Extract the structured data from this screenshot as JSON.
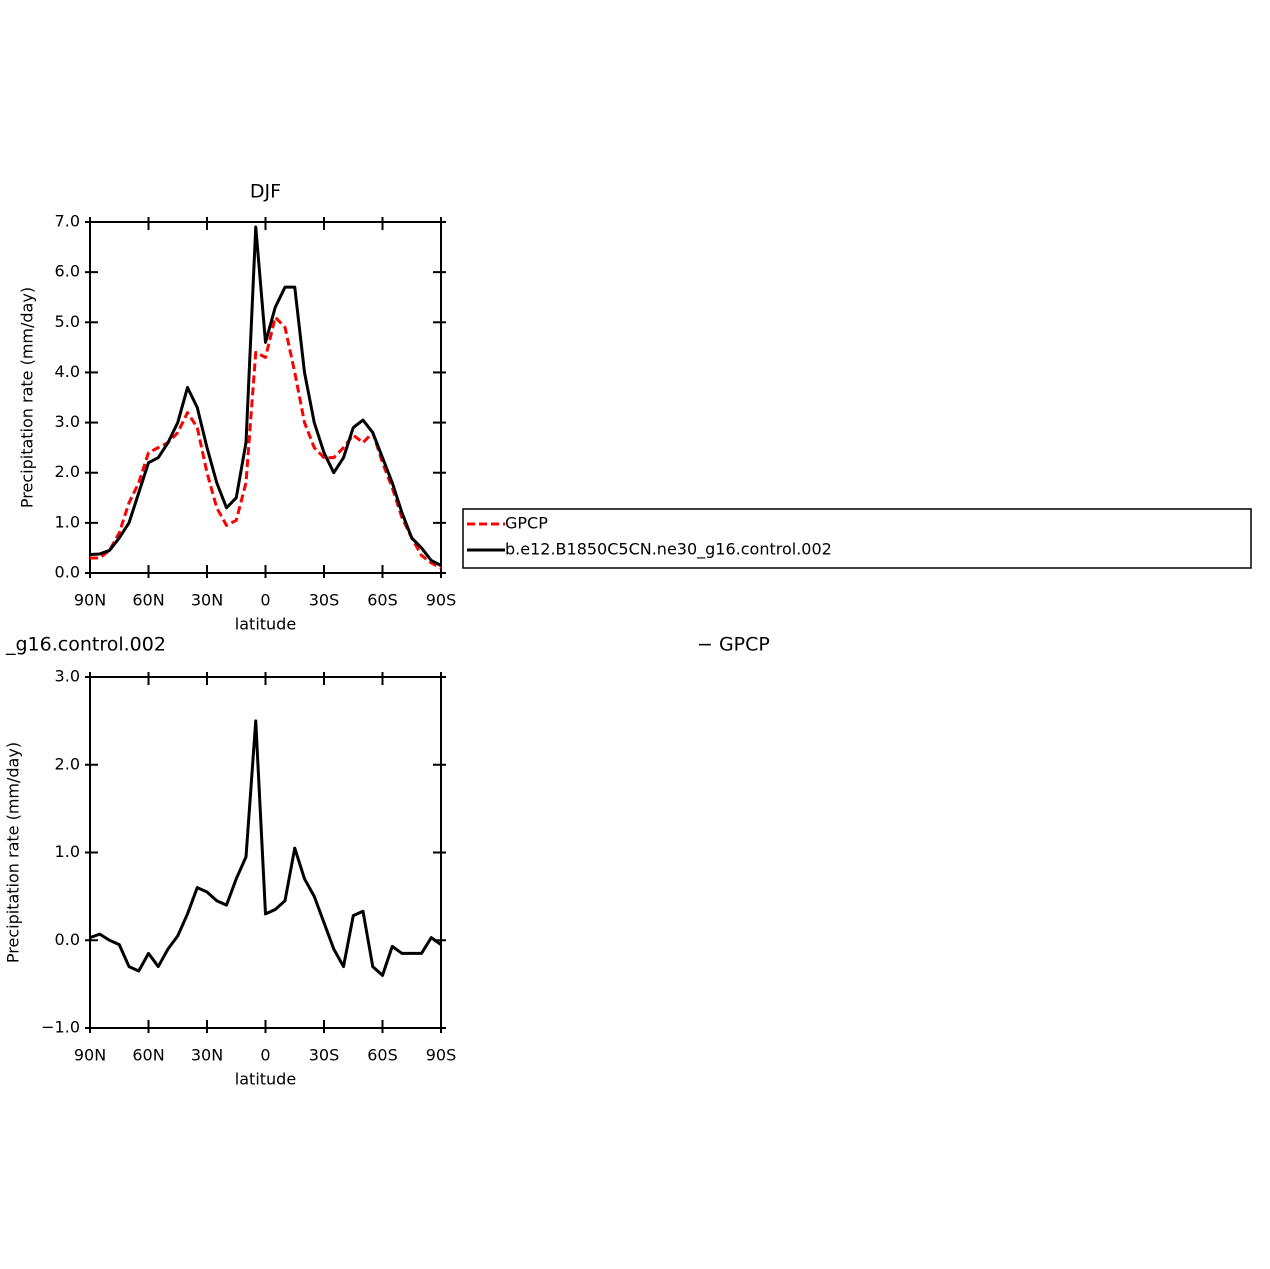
{
  "chart_data": [
    {
      "type": "line",
      "title": "DJF",
      "xlabel": "latitude",
      "ylabel": "Precipitation rate (mm/day)",
      "x": [
        90,
        85,
        80,
        75,
        70,
        65,
        60,
        55,
        50,
        45,
        40,
        35,
        30,
        25,
        20,
        15,
        10,
        5,
        0,
        -5,
        -10,
        -15,
        -20,
        -25,
        -30,
        -35,
        -40,
        -45,
        -50,
        -55,
        -60,
        -65,
        -70,
        -75,
        -80,
        -85,
        -90
      ],
      "series": [
        {
          "name": "GPCP",
          "color": "#ff0000",
          "dash": true,
          "values": [
            0.3,
            0.3,
            0.45,
            0.8,
            1.4,
            1.8,
            2.4,
            2.5,
            2.6,
            2.8,
            3.2,
            2.9,
            2.0,
            1.3,
            0.95,
            1.05,
            1.8,
            4.4,
            4.3,
            5.1,
            4.9,
            4.0,
            3.0,
            2.5,
            2.3,
            2.3,
            2.5,
            2.75,
            2.6,
            2.8,
            2.2,
            1.7,
            1.1,
            0.7,
            0.35,
            0.2,
            0.1
          ]
        },
        {
          "name": "b.e12.B1850C5CN.ne30_g16.control.002",
          "color": "#000000",
          "dash": false,
          "values": [
            0.37,
            0.38,
            0.45,
            0.7,
            1.0,
            1.6,
            2.2,
            2.3,
            2.6,
            3.0,
            3.7,
            3.3,
            2.5,
            1.8,
            1.3,
            1.5,
            2.6,
            6.9,
            4.6,
            5.3,
            5.7,
            5.7,
            4.0,
            3.0,
            2.4,
            2.0,
            2.3,
            2.9,
            3.05,
            2.8,
            2.3,
            1.8,
            1.2,
            0.7,
            0.5,
            0.25,
            0.15
          ]
        }
      ],
      "xlim": [
        90,
        -90
      ],
      "xticks": [
        {
          "value": 90,
          "label": "90N"
        },
        {
          "value": 60,
          "label": "60N"
        },
        {
          "value": 30,
          "label": "30N"
        },
        0,
        {
          "value": -30,
          "label": "30S"
        },
        {
          "value": -60,
          "label": "60S"
        },
        {
          "value": -90,
          "label": "90S"
        }
      ],
      "ylim": [
        0,
        7
      ],
      "yticks": [
        {
          "value": 0,
          "label": "0.0"
        },
        {
          "value": 1,
          "label": "1.0"
        },
        {
          "value": 2,
          "label": "2.0"
        },
        {
          "value": 3,
          "label": "3.0"
        },
        {
          "value": 4,
          "label": "4.0"
        },
        {
          "value": 5,
          "label": "5.0"
        },
        {
          "value": 6,
          "label": "6.0"
        },
        {
          "value": 7,
          "label": "7.0"
        }
      ],
      "legend": "right"
    },
    {
      "type": "line",
      "title": "_g16.control.002",
      "title_right": "− GPCP",
      "xlabel": "latitude",
      "ylabel": "Precipitation rate (mm/day)",
      "x": [
        90,
        85,
        80,
        75,
        70,
        65,
        60,
        55,
        50,
        45,
        40,
        35,
        30,
        25,
        20,
        15,
        10,
        5,
        0,
        -5,
        -10,
        -15,
        -20,
        -25,
        -30,
        -35,
        -40,
        -45,
        -50,
        -55,
        -60,
        -65,
        -70,
        -75,
        -80,
        -85,
        -90
      ],
      "series": [
        {
          "color": "#000000",
          "dash": false,
          "values": [
            0.03,
            0.07,
            0.0,
            -0.05,
            -0.3,
            -0.35,
            -0.15,
            -0.3,
            -0.1,
            0.05,
            0.3,
            0.6,
            0.55,
            0.45,
            0.4,
            0.7,
            0.95,
            2.5,
            0.3,
            0.35,
            0.45,
            1.05,
            0.7,
            0.5,
            0.2,
            -0.1,
            -0.3,
            0.28,
            0.33,
            -0.3,
            -0.4,
            -0.07,
            -0.15,
            -0.15,
            -0.15,
            0.03,
            -0.05
          ]
        }
      ],
      "xlim": [
        90,
        -90
      ],
      "xticks": [
        {
          "value": 90,
          "label": "90N"
        },
        {
          "value": 60,
          "label": "60N"
        },
        {
          "value": 30,
          "label": "30N"
        },
        0,
        {
          "value": -30,
          "label": "30S"
        },
        {
          "value": -60,
          "label": "60S"
        },
        {
          "value": -90,
          "label": "90S"
        }
      ],
      "ylim": [
        -1,
        3
      ],
      "yticks": [
        {
          "value": -1,
          "label": "−1.0"
        },
        {
          "value": 0,
          "label": "0.0"
        },
        {
          "value": 1,
          "label": "1.0"
        },
        {
          "value": 2,
          "label": "2.0"
        },
        {
          "value": 3,
          "label": "3.0"
        }
      ]
    }
  ]
}
